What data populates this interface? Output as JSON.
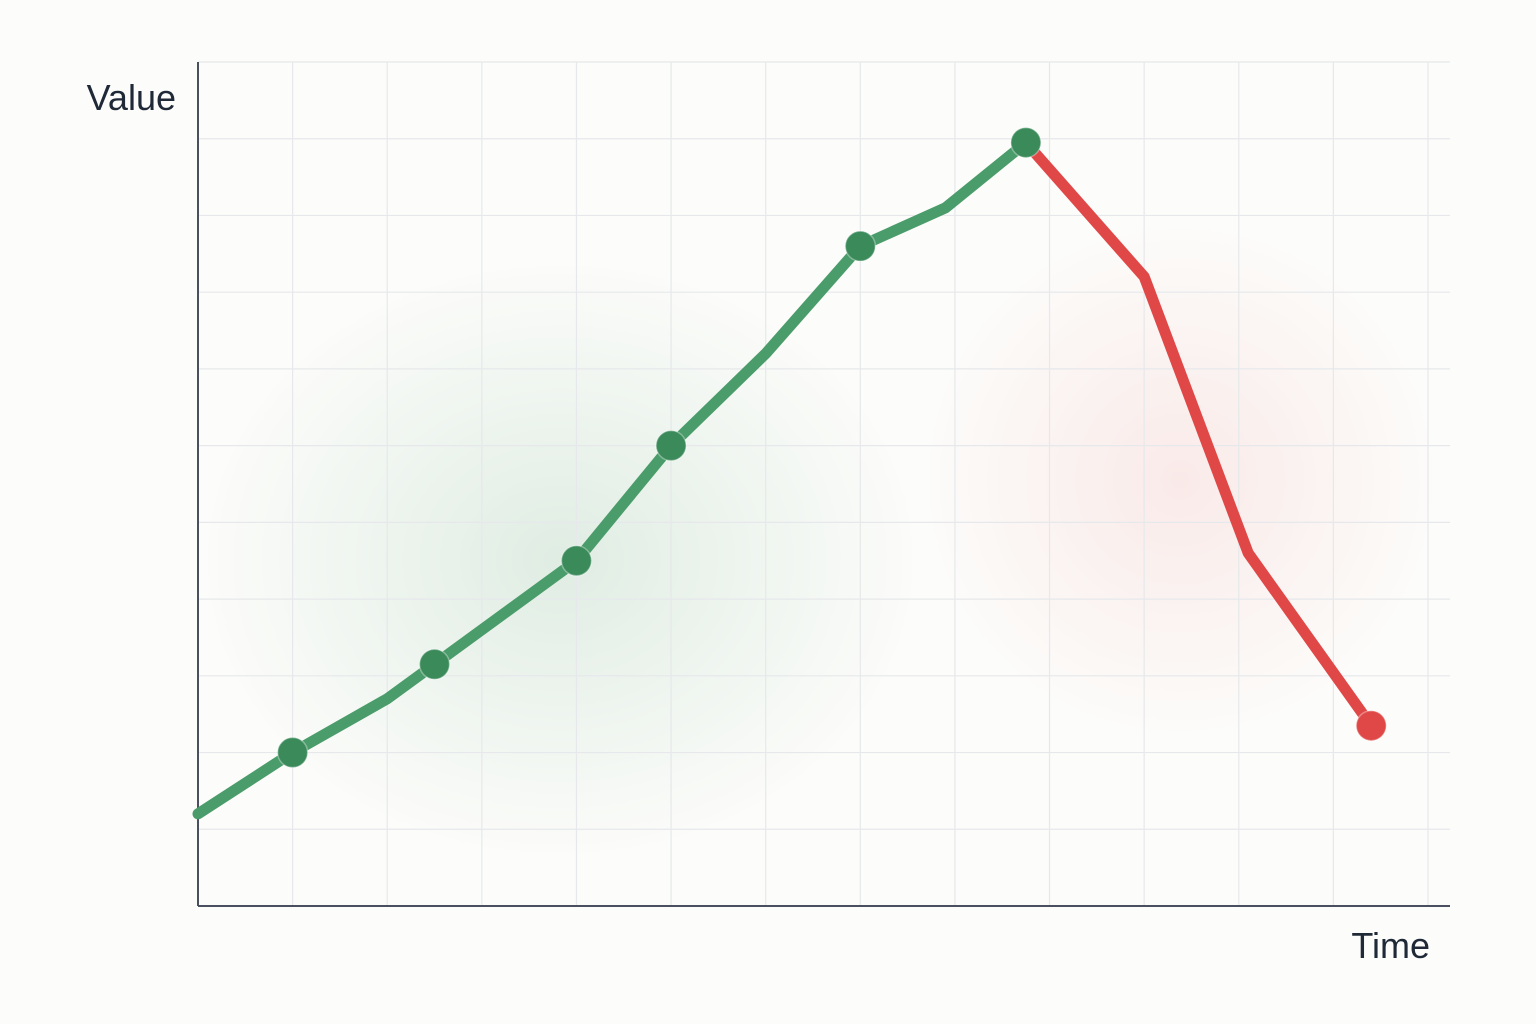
{
  "chart_data": {
    "type": "line",
    "title": "",
    "xlabel": "Time",
    "ylabel": "Value",
    "xlim": [
      0,
      13
    ],
    "ylim": [
      0,
      11
    ],
    "grid": true,
    "series": [
      {
        "color": "#4a9c6a",
        "marker_color": "#3a8a5a",
        "x": [
          0,
          1,
          2,
          2.5,
          4,
          5,
          6,
          7,
          7.9,
          8.75
        ],
        "y": [
          1.2,
          2.0,
          2.7,
          3.15,
          4.5,
          6.0,
          7.2,
          8.6,
          9.1,
          9.95
        ],
        "markers": [
          false,
          true,
          false,
          true,
          true,
          true,
          false,
          true,
          false,
          true
        ]
      },
      {
        "color": "#e04848",
        "marker_color": "#e04848",
        "x": [
          8.75,
          10,
          11.1,
          12.4
        ],
        "y": [
          9.95,
          8.2,
          4.6,
          2.35
        ],
        "markers": [
          false,
          false,
          false,
          true
        ]
      }
    ]
  }
}
